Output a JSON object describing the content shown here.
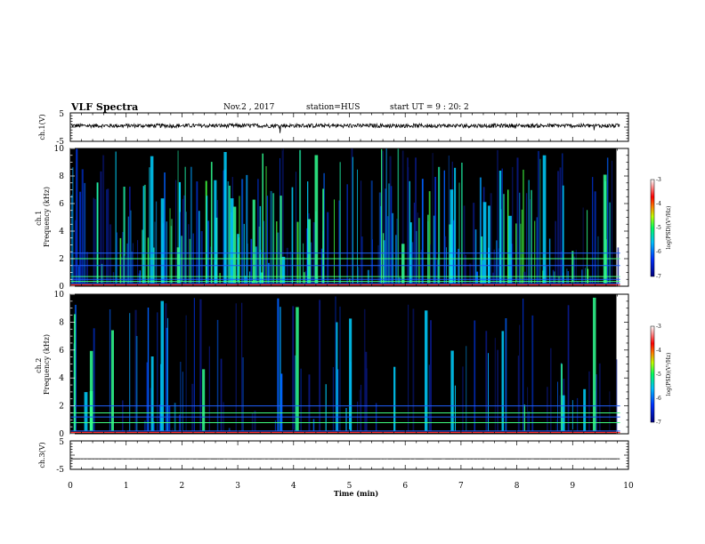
{
  "header": {
    "title": "VLF Spectra",
    "date": "Nov.2 , 2017",
    "station": "station=HUS",
    "start_ut": "start UT = 9 : 20: 2"
  },
  "chart_data": [
    {
      "type": "line",
      "panel": "ch1-waveform",
      "ylabel": "ch.1(V)",
      "yticks": [
        "5",
        "-5"
      ],
      "ylim": [
        -5,
        5
      ],
      "xlim": [
        0,
        10
      ],
      "baseline": 0.5
    },
    {
      "type": "heatmap",
      "panel": "ch1-spectrogram",
      "ylabel": "ch.1\nFrequency (kHz)",
      "ylabel_lines": [
        "ch.1",
        "Frequency (kHz)"
      ],
      "yticks": [
        "0",
        "2",
        "4",
        "6",
        "8",
        "10"
      ],
      "ylim": [
        0,
        10
      ],
      "xlim": [
        0,
        9.85
      ],
      "colorbar": {
        "label": "log(PSD)(V²/Hz)",
        "ticks": [
          "-3",
          "-4",
          "-5",
          "-6",
          "-7"
        ],
        "range": [
          -7,
          -3
        ]
      },
      "lines_khz": [
        0.2,
        0.35,
        0.5,
        0.7,
        1.5,
        2.0,
        2.4
      ]
    },
    {
      "type": "heatmap",
      "panel": "ch2-spectrogram",
      "ylabel": "ch.2\nFrequency (kHz)",
      "ylabel_lines": [
        "ch.2",
        "Frequency (kHz)"
      ],
      "yticks": [
        "0",
        "2",
        "4",
        "6",
        "8",
        "10"
      ],
      "ylim": [
        0,
        10
      ],
      "xlim": [
        0,
        9.85
      ],
      "colorbar": {
        "label": "log(PSD)(V²/Hz)",
        "ticks": [
          "-3",
          "-4",
          "-5",
          "-6",
          "-7"
        ],
        "range": [
          -7,
          -3
        ]
      },
      "lines_khz": [
        0.2,
        0.8,
        1.2,
        1.5,
        2.0
      ]
    },
    {
      "type": "line",
      "panel": "ch3-waveform",
      "ylabel": "ch.3(V)",
      "yticks": [
        "5",
        "-5"
      ],
      "ylim": [
        -5,
        5
      ],
      "xlim": [
        0,
        10
      ],
      "baseline": -1.3
    }
  ],
  "xaxis": {
    "label": "Time (min)",
    "ticks": [
      "0",
      "1",
      "2",
      "3",
      "4",
      "5",
      "6",
      "7",
      "8",
      "9",
      "10"
    ]
  },
  "colors": {
    "spectrogram_bg": "#000000",
    "colormap": [
      "#2020a0",
      "#0050ff",
      "#00c0ff",
      "#00ff80",
      "#ffff00",
      "#ff8000",
      "#ff0000",
      "#ffffff"
    ]
  }
}
